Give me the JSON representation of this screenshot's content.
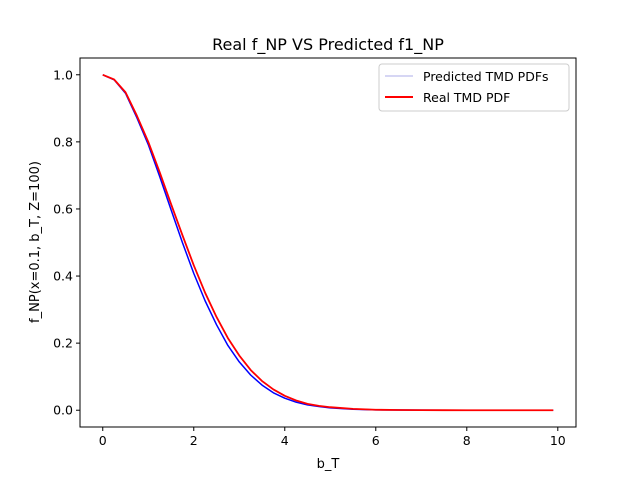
{
  "chart_data": {
    "type": "line",
    "title": "Real f_NP VS Predicted f1_NP",
    "xlabel": "b_T",
    "ylabel": "f_NP(x=0.1, b_T, Z=100)",
    "xlim": [
      -0.5,
      10.4
    ],
    "ylim": [
      -0.05,
      1.05
    ],
    "xticks": [
      0,
      2,
      4,
      6,
      8,
      10
    ],
    "yticks": [
      0.0,
      0.2,
      0.4,
      0.6,
      0.8,
      1.0
    ],
    "xtick_labels": [
      "0",
      "2",
      "4",
      "6",
      "8",
      "10"
    ],
    "ytick_labels": [
      "0.0",
      "0.2",
      "0.4",
      "0.6",
      "0.8",
      "1.0"
    ],
    "grid": false,
    "legend_position": "top-right",
    "series": [
      {
        "name": "Predicted TMD PDFs",
        "color": "#0000ff",
        "legend_color": "#c8c8f0",
        "x": [
          0,
          0.25,
          0.5,
          0.75,
          1.0,
          1.25,
          1.5,
          1.75,
          2.0,
          2.25,
          2.5,
          2.75,
          3.0,
          3.25,
          3.5,
          3.75,
          4.0,
          4.25,
          4.5,
          4.75,
          5.0,
          5.5,
          6.0,
          6.5,
          7.0,
          7.5,
          8.0,
          8.5,
          9.0,
          9.5,
          9.9
        ],
        "y": [
          1.0,
          0.985,
          0.945,
          0.872,
          0.792,
          0.697,
          0.598,
          0.5,
          0.408,
          0.326,
          0.255,
          0.193,
          0.144,
          0.105,
          0.075,
          0.052,
          0.036,
          0.024,
          0.016,
          0.011,
          0.007,
          0.003,
          0.001,
          0.0005,
          0.0002,
          0.0001,
          0.0,
          0.0,
          0.0,
          0.0,
          0.0
        ]
      },
      {
        "name": "Real TMD PDF",
        "color": "#ff0000",
        "legend_color": "#ff0000",
        "x": [
          0,
          0.25,
          0.5,
          0.75,
          1.0,
          1.25,
          1.5,
          1.75,
          2.0,
          2.25,
          2.5,
          2.75,
          3.0,
          3.25,
          3.5,
          3.75,
          4.0,
          4.25,
          4.5,
          4.75,
          5.0,
          5.5,
          6.0,
          6.5,
          7.0,
          7.5,
          8.0,
          8.5,
          9.0,
          9.5,
          9.9
        ],
        "y": [
          1.0,
          0.986,
          0.948,
          0.878,
          0.8,
          0.71,
          0.615,
          0.522,
          0.432,
          0.35,
          0.278,
          0.215,
          0.163,
          0.12,
          0.087,
          0.062,
          0.043,
          0.029,
          0.019,
          0.013,
          0.009,
          0.004,
          0.0015,
          0.0006,
          0.0002,
          0.0001,
          0.0,
          0.0,
          0.0,
          0.0,
          0.0
        ]
      }
    ]
  }
}
